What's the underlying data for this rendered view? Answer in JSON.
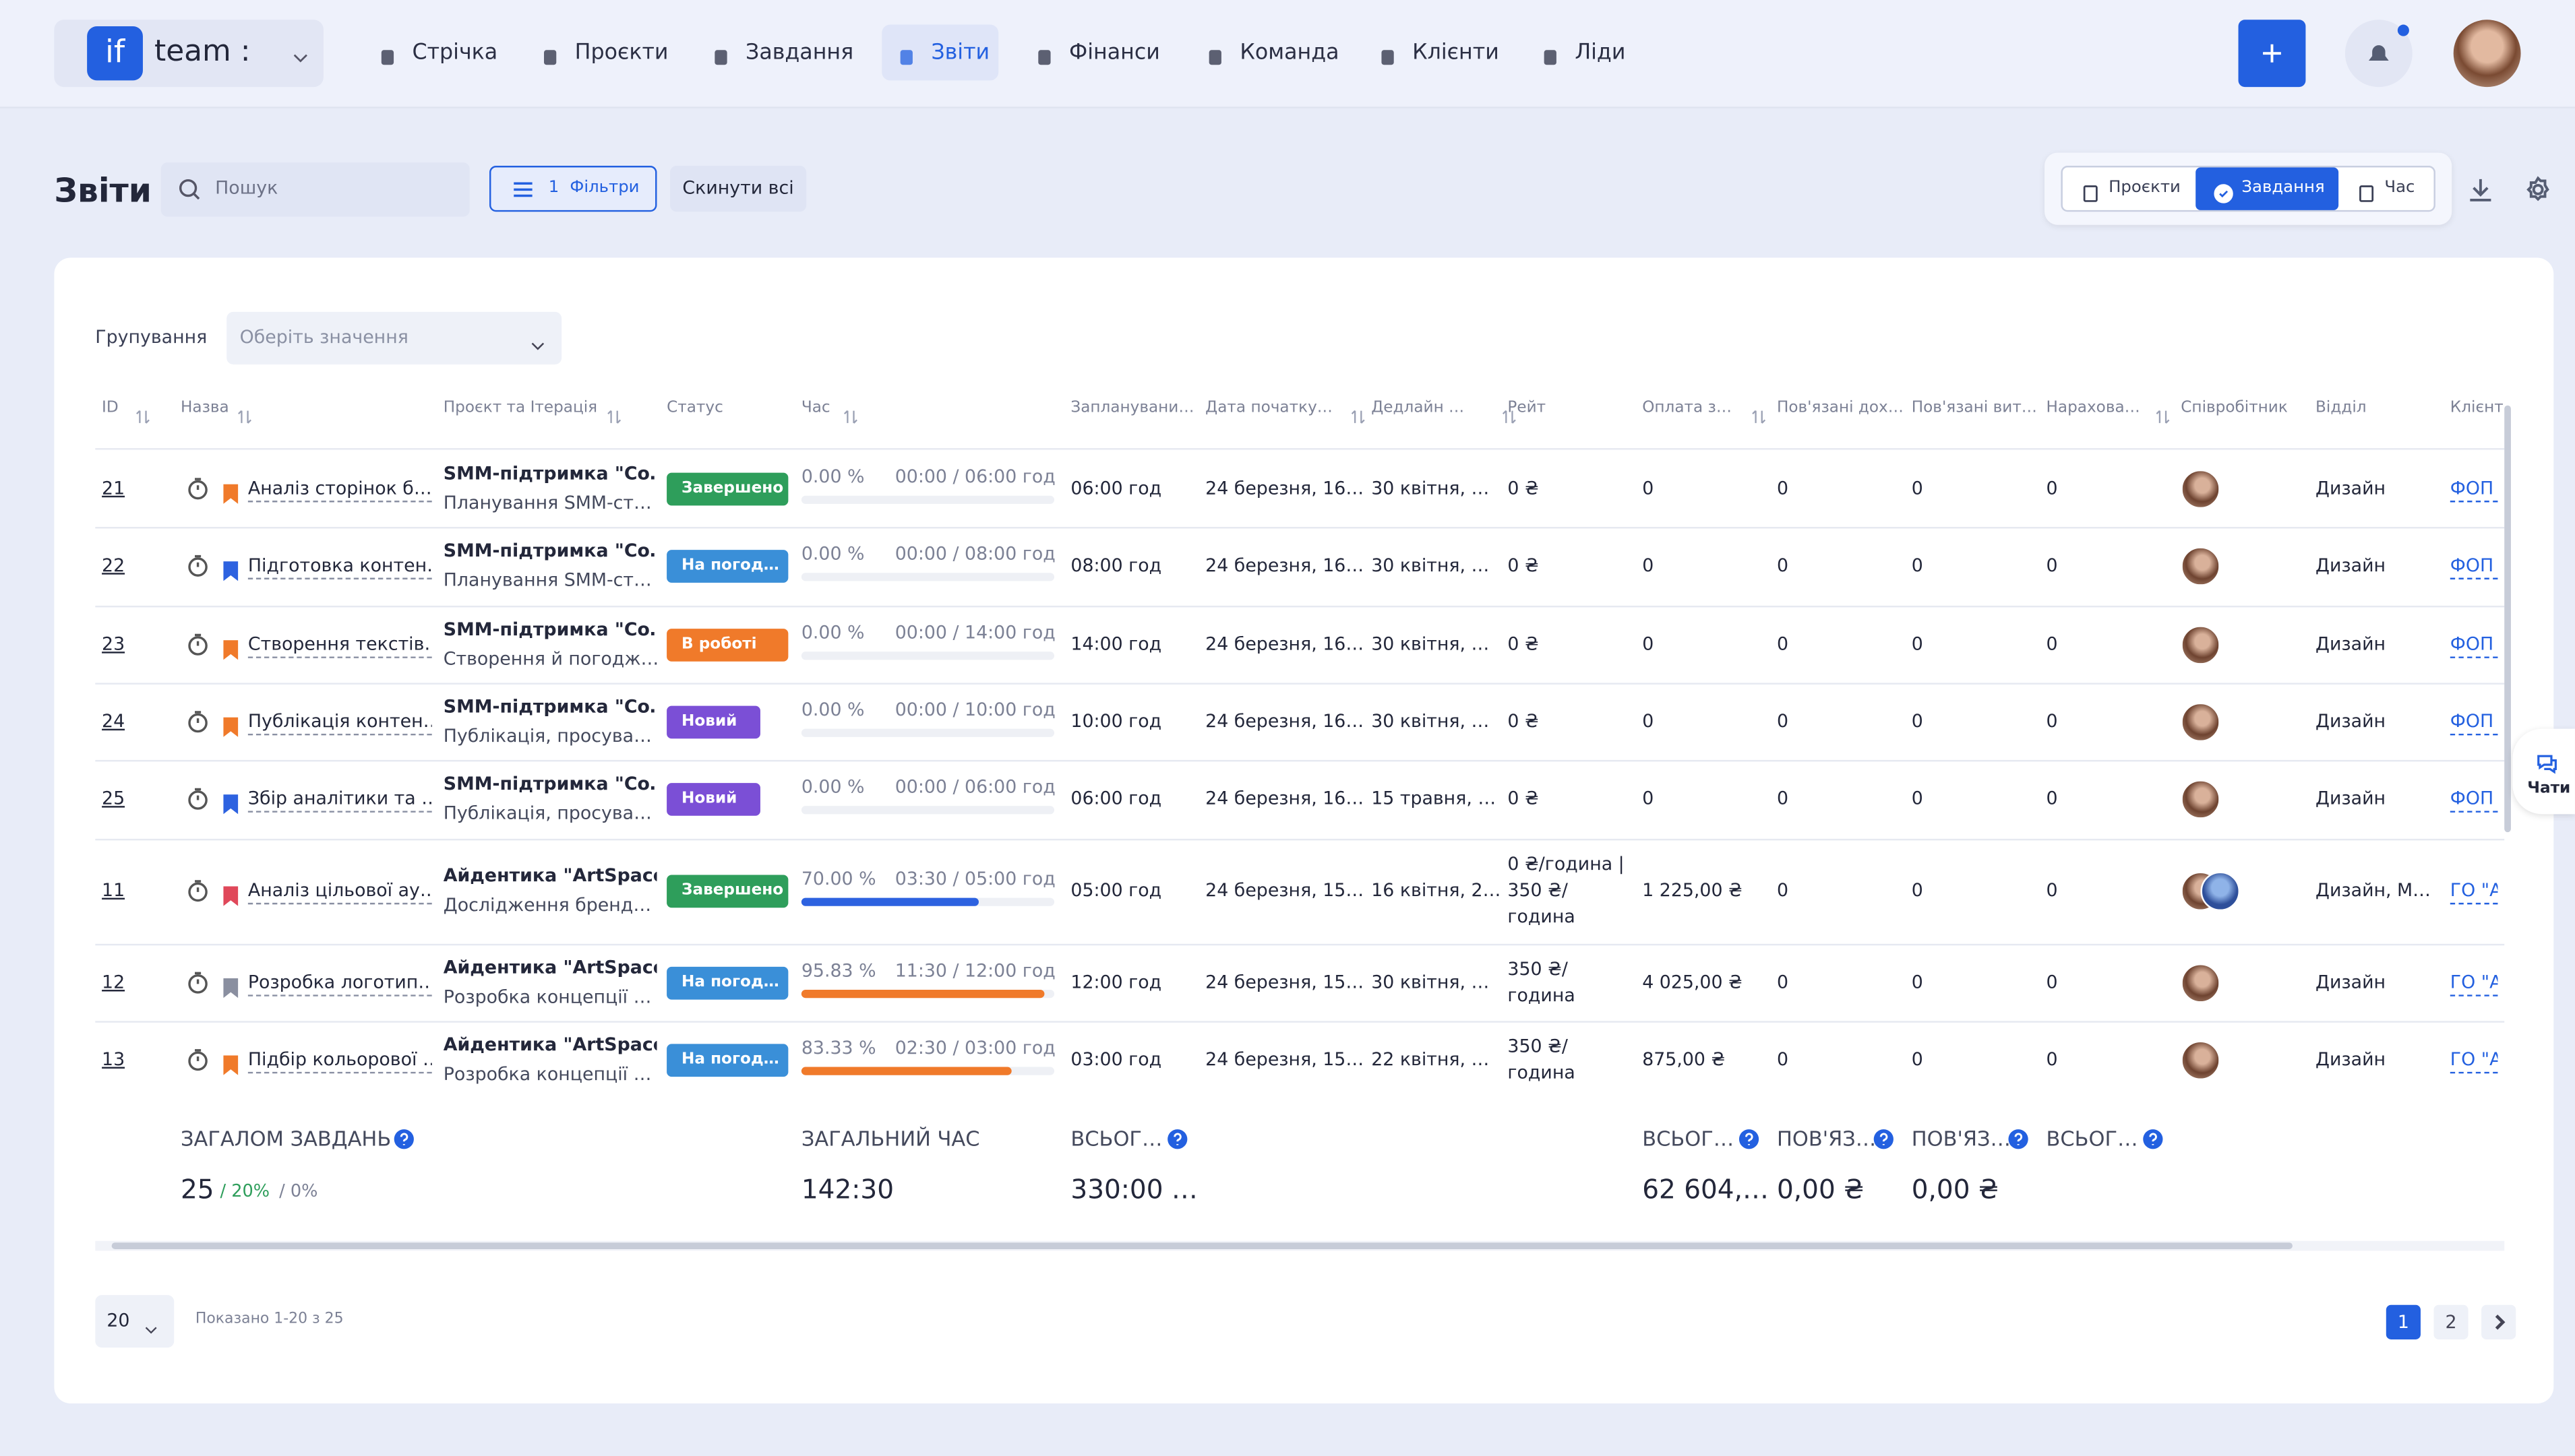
{
  "nav": {
    "logo": "if",
    "workspace": "team :",
    "items": [
      "Стрічка",
      "Проєкти",
      "Завдання",
      "Звіти",
      "Фінанси",
      "Команда",
      "Клієнти",
      "Ліди"
    ],
    "active": 3
  },
  "header": {
    "title": "Звіти",
    "search_placeholder": "Пошук",
    "filter_count": "1",
    "filter_label": "Фільтри",
    "reset": "Скинути всі",
    "views": [
      "Проєкти",
      "Завдання",
      "Час"
    ],
    "active_view": 1
  },
  "grouping": {
    "label": "Групування",
    "placeholder": "Оберіть значення"
  },
  "table": {
    "columns": [
      "ID",
      "Назва",
      "Проєкт та Ітерація",
      "Статус",
      "Час",
      "Запланувани…",
      "Дата початку…",
      "Дедлайн …",
      "Рейт",
      "Оплата з…",
      "Пов'язані дох…",
      "Пов'язані вит…",
      "Нарахова…",
      "Співробітник",
      "Відділ",
      "Клієнт"
    ],
    "rows": [
      {
        "id": "21",
        "name": "Аналіз сторінок б…",
        "flag": "#f07a2a",
        "project": "SMM-підтримка \"Co…",
        "iteration": "Планування SMM-ст…",
        "status": "Завершено",
        "status_color": "#2e9e5b",
        "progress": 0,
        "progress_label": "0.00 %",
        "progress_color": "#2d62e0",
        "time": "00:00 / 06:00 год",
        "planned": "06:00 год",
        "start": "24 березня, 16…",
        "deadline": "30 квітня, …",
        "rate": "0 ₴",
        "payment": "0",
        "income": "0",
        "expense": "0",
        "accrual": "0",
        "avatars": 1,
        "dept": "Дизайн",
        "client": "ФОП І"
      },
      {
        "id": "22",
        "name": "Підготовка контен…",
        "flag": "#2d62e0",
        "project": "SMM-підтримка \"Co…",
        "iteration": "Планування SMM-ст…",
        "status": "На погод…",
        "status_color": "#3a8fd8",
        "progress": 0,
        "progress_label": "0.00 %",
        "progress_color": "#f07a2a",
        "time": "00:00 / 08:00 год",
        "planned": "08:00 год",
        "start": "24 березня, 16…",
        "deadline": "30 квітня, …",
        "rate": "0 ₴",
        "payment": "0",
        "income": "0",
        "expense": "0",
        "accrual": "0",
        "avatars": 1,
        "dept": "Дизайн",
        "client": "ФОП І"
      },
      {
        "id": "23",
        "name": "Створення текстів…",
        "flag": "#f07a2a",
        "project": "SMM-підтримка \"Co…",
        "iteration": "Створення й погодж…",
        "status": "В роботі",
        "status_color": "#f07a2a",
        "progress": 0,
        "progress_label": "0.00 %",
        "progress_color": "#f07a2a",
        "time": "00:00 / 14:00 год",
        "planned": "14:00 год",
        "start": "24 березня, 16…",
        "deadline": "30 квітня, …",
        "rate": "0 ₴",
        "payment": "0",
        "income": "0",
        "expense": "0",
        "accrual": "0",
        "avatars": 1,
        "dept": "Дизайн",
        "client": "ФОП І"
      },
      {
        "id": "24",
        "name": "Публікація контен…",
        "flag": "#f07a2a",
        "project": "SMM-підтримка \"Co…",
        "iteration": "Публікація, просува…",
        "status": "Новий",
        "status_color": "#7b4fd6",
        "progress": 0,
        "progress_label": "0.00 %",
        "progress_color": "#f07a2a",
        "time": "00:00 / 10:00 год",
        "planned": "10:00 год",
        "start": "24 березня, 16…",
        "deadline": "30 квітня, …",
        "rate": "0 ₴",
        "payment": "0",
        "income": "0",
        "expense": "0",
        "accrual": "0",
        "avatars": 1,
        "dept": "Дизайн",
        "client": "ФОП І"
      },
      {
        "id": "25",
        "name": "Збір аналітики та …",
        "flag": "#2d62e0",
        "project": "SMM-підтримка \"Co…",
        "iteration": "Публікація, просува…",
        "status": "Новий",
        "status_color": "#7b4fd6",
        "progress": 0,
        "progress_label": "0.00 %",
        "progress_color": "#f07a2a",
        "time": "00:00 / 06:00 год",
        "planned": "06:00 год",
        "start": "24 березня, 16…",
        "deadline": "15 травня, …",
        "rate": "0 ₴",
        "payment": "0",
        "income": "0",
        "expense": "0",
        "accrual": "0",
        "avatars": 1,
        "dept": "Дизайн",
        "client": "ФОП І"
      },
      {
        "id": "11",
        "name": "Аналіз цільової ау…",
        "flag": "#e0485a",
        "project": "Айдентика \"ArtSpace\"",
        "iteration": "Дослідження бренд…",
        "status": "Завершено",
        "status_color": "#2e9e5b",
        "progress": 70,
        "progress_label": "70.00 %",
        "progress_color": "#2d62e0",
        "time": "03:30 / 05:00 год",
        "planned": "05:00 год",
        "start": "24 березня, 15…",
        "deadline": "16 квітня, 2…",
        "rate": "0 ₴/година | 350 ₴/ година",
        "payment": "1 225,00 ₴",
        "income": "0",
        "expense": "0",
        "accrual": "0",
        "avatars": 2,
        "dept": "Дизайн, М…",
        "client": "ГО \"А"
      },
      {
        "id": "12",
        "name": "Розробка логотип…",
        "flag": "#8a8fa0",
        "project": "Айдентика \"ArtSpace\"",
        "iteration": "Розробка концепції …",
        "status": "На погод…",
        "status_color": "#3a8fd8",
        "progress": 95.83,
        "progress_label": "95.83 %",
        "progress_color": "#f07a2a",
        "time": "11:30 / 12:00 год",
        "planned": "12:00 год",
        "start": "24 березня, 15…",
        "deadline": "30 квітня, …",
        "rate": "350 ₴/ година",
        "payment": "4 025,00 ₴",
        "income": "0",
        "expense": "0",
        "accrual": "0",
        "avatars": 1,
        "dept": "Дизайн",
        "client": "ГО \"А"
      },
      {
        "id": "13",
        "name": "Підбір кольорової …",
        "flag": "#f07a2a",
        "project": "Айдентика \"ArtSpace\"",
        "iteration": "Розробка концепції …",
        "status": "На погод…",
        "status_color": "#3a8fd8",
        "progress": 83.33,
        "progress_label": "83.33 %",
        "progress_color": "#f07a2a",
        "time": "02:30 / 03:00 год",
        "planned": "03:00 год",
        "start": "24 березня, 15…",
        "deadline": "22 квітня, …",
        "rate": "350 ₴/ година",
        "payment": "875,00 ₴",
        "income": "0",
        "expense": "0",
        "accrual": "0",
        "avatars": 1,
        "dept": "Дизайн",
        "client": "ГО \"А"
      }
    ]
  },
  "totals": {
    "tasks_label": "ЗАГАЛОМ ЗАВДАНЬ",
    "tasks": "25",
    "tasks_done": "/ 20%",
    "tasks_other": "/ 0%",
    "cells": [
      {
        "label": "ЗАГАЛЬНИЙ ЧАС",
        "value": "142:30",
        "col": 4,
        "help": false
      },
      {
        "label": "ВСЬОГ…",
        "value": "330:00 …",
        "col": 5,
        "help": true
      },
      {
        "label": "ВСЬОГ…",
        "value": "62 604,…",
        "col": 9,
        "help": true
      },
      {
        "label": "ПОВ'ЯЗ…",
        "value": "0,00 ₴",
        "col": 10,
        "help": true
      },
      {
        "label": "ПОВ'ЯЗ…",
        "value": "0,00 ₴",
        "col": 11,
        "help": true
      },
      {
        "label": "ВСЬОГ…",
        "value": "",
        "col": 12,
        "help": true
      }
    ]
  },
  "pagination": {
    "page_size": "20",
    "shown": "Показано 1-20 з 25",
    "pages": [
      "1",
      "2"
    ],
    "current": 0
  },
  "chat": "Чати"
}
